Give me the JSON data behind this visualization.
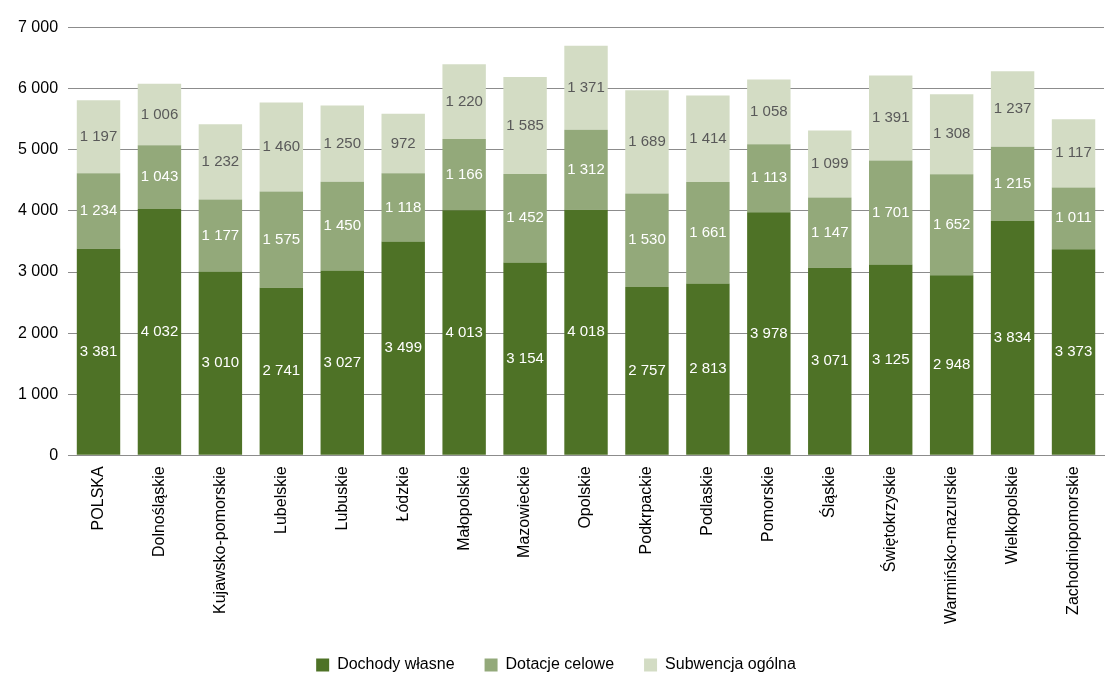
{
  "chart_data": {
    "type": "bar",
    "stacked": true,
    "categories": [
      "POLSKA",
      "Dolnośląskie",
      "Kujawsko-pomorskie",
      "Lubelskie",
      "Lubuskie",
      "Łódzkie",
      "Małopolskie",
      "Mazowieckie",
      "Opolskie",
      "Podkrpackie",
      "Podlaskie",
      "Pomorskie",
      "Śląskie",
      "Świętokrzyskie",
      "Warmińsko-mazurskie",
      "Wielkopolskie",
      "Zachodniopomorskie"
    ],
    "series": [
      {
        "name": "Dochody własne",
        "color": "#4e7226",
        "values": [
          3381,
          4032,
          3010,
          2741,
          3027,
          3499,
          4013,
          3154,
          4018,
          2757,
          2813,
          3978,
          3071,
          3125,
          2948,
          3834,
          3373
        ],
        "value_labels": [
          "3 381",
          "4 032",
          "3 010",
          "2 741",
          "3 027",
          "3 499",
          "4 013",
          "3 154",
          "4 018",
          "2 757",
          "2 813",
          "3 978",
          "3 071",
          "3 125",
          "2 948",
          "3 834",
          "3 373"
        ]
      },
      {
        "name": "Dotacje celowe",
        "color": "#93a97a",
        "values": [
          1234,
          1043,
          1177,
          1575,
          1450,
          1118,
          1166,
          1452,
          1312,
          1530,
          1661,
          1113,
          1147,
          1701,
          1652,
          1215,
          1011
        ],
        "value_labels": [
          "1 234",
          "1 043",
          "1 177",
          "1 575",
          "1 450",
          "1 118",
          "1 166",
          "1 452",
          "1 312",
          "1 530",
          "1 661",
          "1 113",
          "1 147",
          "1 701",
          "1 652",
          "1 215",
          "1 011"
        ]
      },
      {
        "name": "Subwencja ogólna",
        "color": "#d3dcc4",
        "values": [
          1197,
          1006,
          1232,
          1460,
          1250,
          972,
          1220,
          1585,
          1371,
          1689,
          1414,
          1058,
          1099,
          1391,
          1308,
          1237,
          1117
        ],
        "value_labels": [
          "1 197",
          "1 006",
          "1 232",
          "1 460",
          "1 250",
          "972",
          "1 220",
          "1 585",
          "1 371",
          "1 689",
          "1 414",
          "1 058",
          "1 099",
          "1 391",
          "1 308",
          "1 237",
          "1 117"
        ]
      }
    ],
    "ylim": [
      0,
      7000
    ],
    "yticks": [
      {
        "value": 0,
        "label": "0"
      },
      {
        "value": 1000,
        "label": "1 000"
      },
      {
        "value": 2000,
        "label": "2 000"
      },
      {
        "value": 3000,
        "label": "3 000"
      },
      {
        "value": 4000,
        "label": "4 000"
      },
      {
        "value": 5000,
        "label": "5 000"
      },
      {
        "value": 6000,
        "label": "6 000"
      },
      {
        "value": 7000,
        "label": "7 000"
      }
    ],
    "grid": "y",
    "legend": "bottom"
  }
}
